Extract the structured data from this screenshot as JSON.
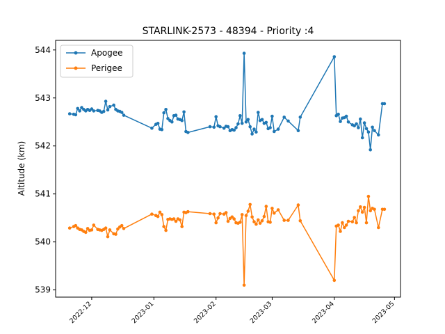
{
  "chart_data": {
    "type": "line",
    "title": "STARLINK-2573 - 48394 - Priority :4",
    "xlabel": "",
    "ylabel": "Altitude (km)",
    "ylim": [
      538.85,
      544.2
    ],
    "xlim": [
      "2022-11-13",
      "2023-05-04"
    ],
    "yticks": [
      539,
      540,
      541,
      542,
      543,
      544
    ],
    "xticks": [
      "2022-12",
      "2023-01",
      "2023-02",
      "2023-03",
      "2023-04",
      "2023-05"
    ],
    "grid": false,
    "legend_position": "top-left",
    "series": [
      {
        "name": "Apogee",
        "color": "#1f77b4",
        "x": [
          "2022-11-20",
          "2022-11-22",
          "2022-11-23",
          "2022-11-24",
          "2022-11-25",
          "2022-11-26",
          "2022-11-27",
          "2022-11-28",
          "2022-11-29",
          "2022-11-30",
          "2022-12-01",
          "2022-12-02",
          "2022-12-04",
          "2022-12-05",
          "2022-12-06",
          "2022-12-07",
          "2022-12-08",
          "2022-12-09",
          "2022-12-10",
          "2022-12-12",
          "2022-12-13",
          "2022-12-14",
          "2022-12-15",
          "2022-12-16",
          "2022-12-17",
          "2022-12-31",
          "2023-01-02",
          "2023-01-03",
          "2023-01-04",
          "2023-01-05",
          "2023-01-06",
          "2023-01-07",
          "2023-01-08",
          "2023-01-09",
          "2023-01-10",
          "2023-01-11",
          "2023-01-12",
          "2023-01-13",
          "2023-01-14",
          "2023-01-15",
          "2023-01-16",
          "2023-01-17",
          "2023-01-18",
          "2023-01-29",
          "2023-01-31",
          "2023-02-01",
          "2023-02-02",
          "2023-02-03",
          "2023-02-05",
          "2023-02-06",
          "2023-02-07",
          "2023-02-08",
          "2023-02-09",
          "2023-02-10",
          "2023-02-11",
          "2023-02-12",
          "2023-02-13",
          "2023-02-14",
          "2023-02-15",
          "2023-02-16",
          "2023-02-17",
          "2023-02-18",
          "2023-02-19",
          "2023-02-20",
          "2023-02-21",
          "2023-02-22",
          "2023-02-23",
          "2023-02-24",
          "2023-02-25",
          "2023-02-26",
          "2023-02-27",
          "2023-02-28",
          "2023-03-01",
          "2023-03-02",
          "2023-03-04",
          "2023-03-07",
          "2023-03-09",
          "2023-03-14",
          "2023-03-15",
          "2023-04-01",
          "2023-04-02",
          "2023-04-03",
          "2023-04-04",
          "2023-04-05",
          "2023-04-06",
          "2023-04-07",
          "2023-04-08",
          "2023-04-10",
          "2023-04-11",
          "2023-04-12",
          "2023-04-13",
          "2023-04-14",
          "2023-04-15",
          "2023-04-16",
          "2023-04-17",
          "2023-04-18",
          "2023-04-19",
          "2023-04-20",
          "2023-04-21",
          "2023-04-23",
          "2023-04-25",
          "2023-04-26"
        ],
        "values": [
          542.67,
          542.66,
          542.65,
          542.78,
          542.73,
          542.8,
          542.76,
          542.73,
          542.76,
          542.74,
          542.77,
          542.73,
          542.74,
          542.73,
          542.7,
          542.72,
          542.93,
          542.75,
          542.82,
          542.85,
          542.76,
          542.73,
          542.72,
          542.7,
          542.64,
          542.37,
          542.45,
          542.47,
          542.35,
          542.34,
          542.69,
          542.76,
          542.57,
          542.53,
          542.5,
          542.63,
          542.64,
          542.56,
          542.55,
          542.53,
          542.71,
          542.3,
          542.28,
          542.4,
          542.39,
          542.61,
          542.42,
          542.4,
          542.37,
          542.41,
          542.4,
          542.32,
          542.34,
          542.33,
          542.38,
          542.46,
          542.63,
          542.47,
          543.93,
          542.5,
          542.55,
          542.4,
          542.25,
          542.35,
          542.29,
          542.7,
          542.53,
          542.55,
          542.47,
          542.49,
          542.36,
          542.38,
          542.62,
          542.3,
          542.35,
          542.6,
          542.52,
          542.32,
          542.6,
          543.86,
          542.63,
          542.66,
          542.51,
          542.58,
          542.59,
          542.62,
          542.5,
          542.44,
          542.42,
          542.46,
          542.38,
          542.56,
          542.17,
          542.48,
          542.36,
          542.29,
          541.92,
          542.39,
          542.32,
          542.23,
          542.88,
          542.88
        ],
        "render_values_only_until_index": 100
      },
      {
        "name": "Perigee",
        "color": "#ff7f0e",
        "x": [
          "2022-11-20",
          "2022-11-22",
          "2022-11-23",
          "2022-11-24",
          "2022-11-25",
          "2022-11-26",
          "2022-11-27",
          "2022-11-28",
          "2022-11-29",
          "2022-11-30",
          "2022-12-01",
          "2022-12-02",
          "2022-12-04",
          "2022-12-05",
          "2022-12-06",
          "2022-12-07",
          "2022-12-08",
          "2022-12-09",
          "2022-12-10",
          "2022-12-12",
          "2022-12-13",
          "2022-12-14",
          "2022-12-15",
          "2022-12-16",
          "2022-12-17",
          "2022-12-31",
          "2023-01-02",
          "2023-01-03",
          "2023-01-04",
          "2023-01-05",
          "2023-01-06",
          "2023-01-07",
          "2023-01-08",
          "2023-01-09",
          "2023-01-10",
          "2023-01-11",
          "2023-01-12",
          "2023-01-13",
          "2023-01-14",
          "2023-01-15",
          "2023-01-16",
          "2023-01-17",
          "2023-01-18",
          "2023-01-29",
          "2023-01-31",
          "2023-02-01",
          "2023-02-02",
          "2023-02-03",
          "2023-02-05",
          "2023-02-06",
          "2023-02-07",
          "2023-02-08",
          "2023-02-09",
          "2023-02-10",
          "2023-02-11",
          "2023-02-12",
          "2023-02-13",
          "2023-02-14",
          "2023-02-15",
          "2023-02-16",
          "2023-02-17",
          "2023-02-18",
          "2023-02-19",
          "2023-02-20",
          "2023-02-21",
          "2023-02-22",
          "2023-02-23",
          "2023-02-24",
          "2023-02-25",
          "2023-02-26",
          "2023-02-27",
          "2023-02-28",
          "2023-03-01",
          "2023-03-02",
          "2023-03-04",
          "2023-03-07",
          "2023-03-09",
          "2023-03-14",
          "2023-03-15",
          "2023-04-01",
          "2023-04-02",
          "2023-04-03",
          "2023-04-04",
          "2023-04-05",
          "2023-04-06",
          "2023-04-07",
          "2023-04-08",
          "2023-04-10",
          "2023-04-11",
          "2023-04-12",
          "2023-04-13",
          "2023-04-14",
          "2023-04-15",
          "2023-04-16",
          "2023-04-17",
          "2023-04-18",
          "2023-04-19",
          "2023-04-20",
          "2023-04-21",
          "2023-04-23",
          "2023-04-25",
          "2023-04-26"
        ],
        "values": [
          540.29,
          540.32,
          540.34,
          540.29,
          540.26,
          540.25,
          540.22,
          540.2,
          540.28,
          540.24,
          540.25,
          540.35,
          540.26,
          540.25,
          540.24,
          540.26,
          540.29,
          540.11,
          540.25,
          540.17,
          540.16,
          540.27,
          540.31,
          540.34,
          540.28,
          540.58,
          540.55,
          540.53,
          540.62,
          540.57,
          540.32,
          540.24,
          540.47,
          540.48,
          540.47,
          540.48,
          540.43,
          540.48,
          540.46,
          540.32,
          540.62,
          540.61,
          540.63,
          540.59,
          540.58,
          540.4,
          540.5,
          540.59,
          540.58,
          540.61,
          540.43,
          540.49,
          540.52,
          540.48,
          540.4,
          540.39,
          540.41,
          540.57,
          539.1,
          540.55,
          540.64,
          540.78,
          540.52,
          540.42,
          540.37,
          540.46,
          540.39,
          540.44,
          540.53,
          540.74,
          540.42,
          540.41,
          540.7,
          540.6,
          540.67,
          540.45,
          540.45,
          540.77,
          540.44,
          539.2,
          540.33,
          540.35,
          540.22,
          540.4,
          540.3,
          540.35,
          540.43,
          540.42,
          540.51,
          540.4,
          540.65,
          540.73,
          540.62,
          540.72,
          540.4,
          540.95,
          540.65,
          540.7,
          540.68,
          540.3,
          540.68,
          540.68
        ],
        "render_values_only_until_index": 100
      }
    ]
  }
}
